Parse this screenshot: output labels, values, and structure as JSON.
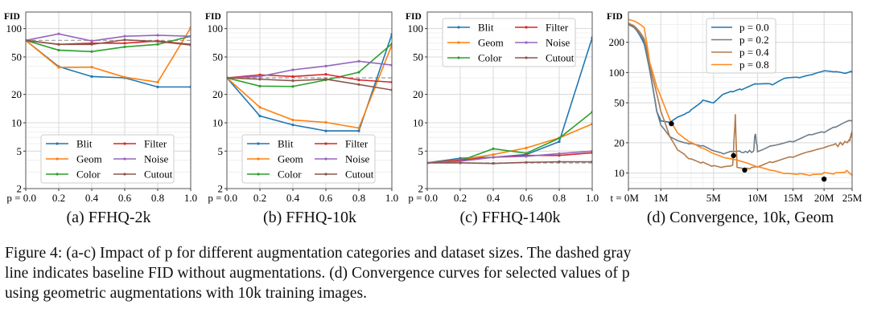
{
  "colors": {
    "Blit": "#1f77b4",
    "Geom": "#ff7f0e",
    "Color": "#2ca02c",
    "Filter": "#d62728",
    "Noise": "#9467bd",
    "Cutout": "#8c564b",
    "p = 0.0": "#1f77b4",
    "p = 0.2": "#6f7d86",
    "p = 0.4": "#b27a4c",
    "p = 0.8": "#ff8a1e",
    "baseline": "#999999",
    "marker": "#000000"
  },
  "chart_data": [
    {
      "type": "line",
      "subtitle": "(a) FFHQ-2k",
      "ylabel": "FID",
      "yscale": "log",
      "ylim": [
        2,
        150
      ],
      "xlim": [
        0,
        1
      ],
      "yticks": [
        2,
        5,
        10,
        20,
        50,
        100
      ],
      "xticks": [
        0,
        0.2,
        0.4,
        0.6,
        0.8,
        1.0
      ],
      "xtick_labels": [
        "p = 0.0",
        "0.2",
        "0.4",
        "0.6",
        "0.8",
        "1.0"
      ],
      "grid": true,
      "legend": "bottom",
      "baseline": 75,
      "x": [
        0,
        0.2,
        0.4,
        0.6,
        0.8,
        1.0
      ],
      "series": [
        {
          "name": "Blit",
          "values": [
            75,
            39.5,
            31,
            30,
            24,
            24
          ]
        },
        {
          "name": "Geom",
          "values": [
            75,
            38.7,
            39,
            30.5,
            27,
            102
          ]
        },
        {
          "name": "Color",
          "values": [
            75,
            59,
            57,
            64,
            68,
            83
          ]
        },
        {
          "name": "Filter",
          "values": [
            75,
            68,
            70,
            70,
            74,
            68
          ]
        },
        {
          "name": "Noise",
          "values": [
            75,
            88,
            74,
            83,
            85,
            83
          ]
        },
        {
          "name": "Cutout",
          "values": [
            75,
            68,
            68,
            76,
            73,
            67
          ]
        }
      ]
    },
    {
      "type": "line",
      "subtitle": "(b) FFHQ-10k",
      "ylabel": "FID",
      "yscale": "log",
      "ylim": [
        2,
        150
      ],
      "xlim": [
        0,
        1
      ],
      "yticks": [
        2,
        5,
        10,
        20,
        50,
        100
      ],
      "xticks": [
        0,
        0.2,
        0.4,
        0.6,
        0.8,
        1.0
      ],
      "xtick_labels": [
        "p = 0.0",
        "0.2",
        "0.4",
        "0.6",
        "0.8",
        "1.0"
      ],
      "grid": true,
      "legend": "bottom",
      "baseline": 30,
      "x": [
        0,
        0.2,
        0.4,
        0.6,
        0.8,
        1.0
      ],
      "series": [
        {
          "name": "Blit",
          "values": [
            30,
            11.8,
            9.5,
            8.2,
            8.2,
            87
          ]
        },
        {
          "name": "Geom",
          "values": [
            30,
            14.6,
            10.7,
            10.1,
            8.8,
            67
          ]
        },
        {
          "name": "Color",
          "values": [
            30,
            24.5,
            24.3,
            28.5,
            34.4,
            69
          ]
        },
        {
          "name": "Filter",
          "values": [
            30,
            32.3,
            31,
            32.7,
            28.5,
            27
          ]
        },
        {
          "name": "Noise",
          "values": [
            30,
            31,
            36.5,
            40,
            45,
            41
          ]
        },
        {
          "name": "Cutout",
          "values": [
            30,
            29,
            28,
            29,
            25.5,
            22.3
          ]
        }
      ]
    },
    {
      "type": "line",
      "subtitle": "(c) FFHQ-140k",
      "ylabel": "FID",
      "yscale": "log",
      "ylim": [
        2,
        150
      ],
      "xlim": [
        0,
        1
      ],
      "yticks": [
        2,
        5,
        10,
        20,
        50,
        100
      ],
      "xticks": [
        0,
        0.2,
        0.4,
        0.6,
        0.8,
        1.0
      ],
      "xtick_labels": [
        "p = 0.0",
        "0.2",
        "0.4",
        "0.6",
        "0.8",
        "1.0"
      ],
      "grid": true,
      "legend": "top",
      "baseline": 3.75,
      "x": [
        0,
        0.2,
        0.4,
        0.6,
        0.8,
        1.0
      ],
      "series": [
        {
          "name": "Blit",
          "values": [
            3.75,
            4.2,
            4.3,
            4.6,
            6.3,
            80
          ]
        },
        {
          "name": "Geom",
          "values": [
            3.75,
            4.05,
            4.6,
            5.4,
            6.9,
            9.7
          ]
        },
        {
          "name": "Color",
          "values": [
            3.75,
            3.95,
            5.3,
            4.75,
            6.85,
            13
          ]
        },
        {
          "name": "Filter",
          "values": [
            3.75,
            4.0,
            4.3,
            4.5,
            4.5,
            4.8
          ]
        },
        {
          "name": "Noise",
          "values": [
            3.75,
            3.9,
            4.3,
            4.4,
            4.7,
            5.0
          ]
        },
        {
          "name": "Cutout",
          "values": [
            3.75,
            3.75,
            3.7,
            3.8,
            3.85,
            3.85
          ]
        }
      ]
    },
    {
      "type": "line",
      "subtitle": "(d) Convergence, 10k, Geom",
      "ylabel": "FID",
      "yscale": "log",
      "xscale": "power 0.6",
      "ylim": [
        7,
        400
      ],
      "xlim": [
        0,
        25
      ],
      "yticks": [
        10,
        20,
        50,
        100,
        200
      ],
      "xticks": [
        0,
        1,
        5,
        10,
        15,
        20,
        25
      ],
      "xtick_labels": [
        "t = 0M",
        "1M",
        "5M",
        "10M",
        "15M",
        "20M",
        "25M"
      ],
      "grid": true,
      "legend": "top-center",
      "series": [
        {
          "name": "p = 0.0",
          "x": [
            0,
            0.3,
            0.6,
            0.8,
            1,
            1.5,
            2,
            3,
            4,
            5,
            6,
            7,
            8,
            10,
            12,
            14,
            16,
            18,
            20,
            22,
            24,
            25
          ],
          "values": [
            307,
            193,
            76,
            41,
            33,
            32,
            36,
            41,
            51,
            48,
            59,
            63,
            67,
            76,
            74,
            86,
            86,
            92,
            100,
            98,
            95,
            100
          ]
        },
        {
          "name": "p = 0.2",
          "x": [
            0,
            0.3,
            0.6,
            0.8,
            1,
            1.5,
            2,
            3,
            4,
            5,
            6,
            7,
            8,
            9.5,
            9.7,
            10,
            12,
            15,
            18,
            20,
            22,
            25
          ],
          "values": [
            300,
            205,
            76,
            41,
            30,
            23,
            21,
            19,
            18,
            16,
            15,
            16,
            16,
            16.6,
            25,
            17,
            19.5,
            21,
            24,
            25,
            28,
            33
          ]
        },
        {
          "name": "p = 0.4",
          "x": [
            0,
            0.3,
            0.6,
            1,
            1.5,
            2,
            3,
            4,
            5,
            6,
            7,
            7.3,
            7.5,
            8.5,
            10,
            12,
            15,
            18,
            20,
            22,
            24.5,
            25
          ],
          "values": [
            310,
            218,
            92,
            41,
            23,
            17,
            13.8,
            12.6,
            11.5,
            11.1,
            11.5,
            37,
            11.5,
            10.8,
            11.8,
            13,
            14.2,
            16,
            17.2,
            18.8,
            20.7,
            26
          ]
        },
        {
          "name": "p = 0.8",
          "x": [
            0,
            0.3,
            0.5,
            0.8,
            1.2,
            1.5,
            2,
            3,
            4,
            5,
            6,
            8,
            10,
            12,
            14,
            16,
            18,
            20,
            22,
            24,
            25
          ],
          "values": [
            337,
            280,
            125,
            72,
            46,
            34,
            25,
            19.5,
            17,
            15,
            13.8,
            12.6,
            11.1,
            10.2,
            9.5,
            9.5,
            9.3,
            9.8,
            9.8,
            10.4,
            9.5
          ]
        }
      ],
      "best_points": [
        {
          "series": "p = 0.0",
          "x": 1.6,
          "y": 31
        },
        {
          "series": "p = 0.2",
          "x": 7.1,
          "y": 14.9
        },
        {
          "series": "p = 0.4",
          "x": 8.4,
          "y": 10.7
        },
        {
          "series": "p = 0.8",
          "x": 20,
          "y": 8.7
        }
      ]
    }
  ],
  "caption": {
    "lines": [
      "Figure 4: (a-c) Impact of p for different augmentation categories and dataset sizes. The dashed gray",
      "line indicates baseline FID without augmentations. (d) Convergence curves for selected values of p",
      "using geometric augmentations with 10k training images."
    ]
  }
}
